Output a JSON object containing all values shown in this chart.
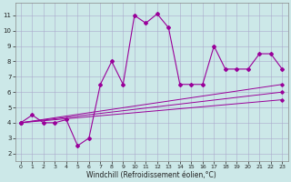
{
  "xlabel": "Windchill (Refroidissement éolien,°C)",
  "bg_color": "#cce8e8",
  "grid_color": "#aaaacc",
  "line_color": "#990099",
  "xlim": [
    -0.5,
    23.5
  ],
  "ylim": [
    1.5,
    11.8
  ],
  "xticks": [
    0,
    1,
    2,
    3,
    4,
    5,
    6,
    7,
    8,
    9,
    10,
    11,
    12,
    13,
    14,
    15,
    16,
    17,
    18,
    19,
    20,
    21,
    22,
    23
  ],
  "yticks": [
    2,
    3,
    4,
    5,
    6,
    7,
    8,
    9,
    10,
    11
  ],
  "series0_x": [
    0,
    1,
    2,
    3,
    4,
    5,
    6,
    7,
    8,
    9,
    10,
    11,
    12,
    13,
    14,
    15,
    16,
    17,
    18,
    19,
    20,
    21,
    22,
    23
  ],
  "series0_y": [
    4.0,
    4.5,
    4.0,
    4.0,
    4.2,
    2.5,
    3.0,
    6.5,
    8.0,
    6.5,
    11.0,
    10.5,
    11.1,
    10.2,
    6.5,
    6.5,
    6.5,
    9.0,
    7.5,
    7.5,
    7.5,
    8.5,
    8.5,
    7.5
  ],
  "series1_x": [
    0,
    23
  ],
  "series1_y": [
    4.0,
    6.5
  ],
  "series2_x": [
    0,
    23
  ],
  "series2_y": [
    4.0,
    6.0
  ],
  "series3_x": [
    0,
    23
  ],
  "series3_y": [
    4.0,
    5.5
  ],
  "xlabel_fontsize": 5.5,
  "tick_fontsize": 5.0
}
